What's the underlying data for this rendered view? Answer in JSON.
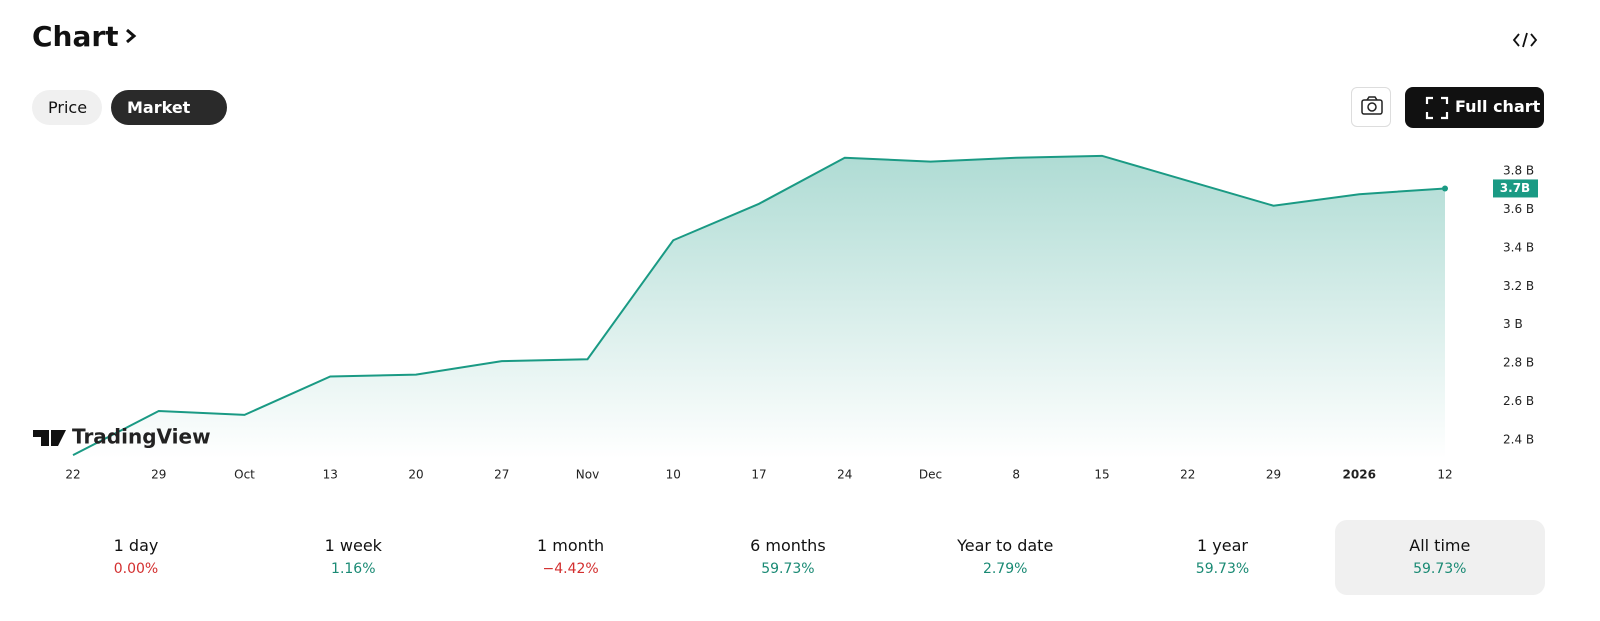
{
  "header": {
    "title": "Chart",
    "tabs": [
      "Price",
      "Market cap"
    ],
    "full_chart": "Full chart"
  },
  "watermark": "TradingView",
  "chart_data": {
    "type": "area",
    "categories": [
      "22",
      "29",
      "Oct",
      "13",
      "20",
      "27",
      "Nov",
      "10",
      "17",
      "24",
      "Dec",
      "8",
      "15",
      "22",
      "29",
      "2026",
      "12"
    ],
    "values": [
      2.32,
      2.55,
      2.53,
      2.73,
      2.74,
      2.81,
      2.82,
      3.44,
      3.63,
      3.87,
      3.85,
      3.87,
      3.88,
      3.75,
      3.62,
      3.68,
      3.71
    ],
    "value_labels": [
      null,
      null,
      null,
      null,
      null,
      null,
      null,
      null,
      null,
      null,
      null,
      null,
      null,
      null,
      null,
      null,
      "3.7B"
    ],
    "color": "#1a9a84",
    "ylim": [
      2.3,
      3.9
    ],
    "yticks": [
      {
        "value": 2.4,
        "label": "2.4 B"
      },
      {
        "value": 2.6,
        "label": "2.6 B"
      },
      {
        "value": 2.8,
        "label": "2.8 B"
      },
      {
        "value": 3,
        "label": "3 B"
      },
      {
        "value": 3.2,
        "label": "3.2 B"
      },
      {
        "value": 3.4,
        "label": "3.4 B"
      },
      {
        "value": 3.6,
        "label": "3.6 B"
      },
      {
        "value": 3.8,
        "label": "3.8 B"
      }
    ],
    "grid": false
  },
  "performance": [
    {
      "period": "1 day",
      "change": "0.00%",
      "color": "#d32f2f"
    },
    {
      "period": "1 week",
      "change": "1.16%",
      "color": "#1a8a74"
    },
    {
      "period": "1 month",
      "change": "−4.42%",
      "color": "#d32f2f"
    },
    {
      "period": "6 months",
      "change": "59.73%",
      "color": "#1a8a74"
    },
    {
      "period": "Year to date",
      "change": "2.79%",
      "color": "#1a8a74"
    },
    {
      "period": "1 year",
      "change": "59.73%",
      "color": "#1a8a74"
    },
    {
      "period": "All time",
      "change": "59.73%",
      "color": "#1a8a74"
    }
  ]
}
